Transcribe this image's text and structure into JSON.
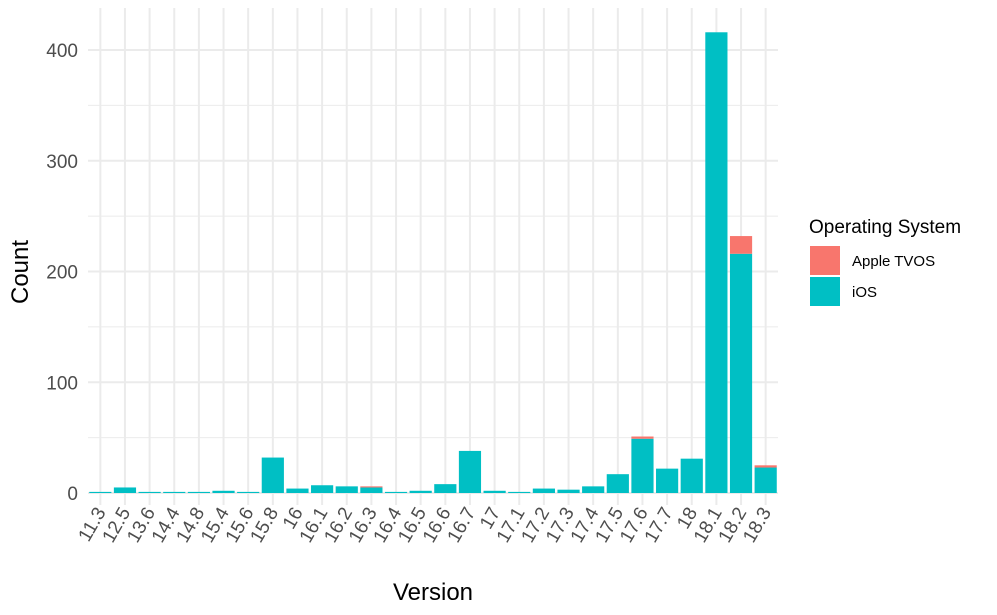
{
  "chart_data": {
    "type": "bar",
    "stacked": true,
    "xlabel": "Version",
    "ylabel": "Count",
    "ylim": [
      0,
      425
    ],
    "yticks": [
      0,
      100,
      200,
      300,
      400
    ],
    "grid": true,
    "legend": {
      "title": "Operating System",
      "position": "right"
    },
    "categories": [
      "11.3",
      "12.5",
      "13.6",
      "14.4",
      "14.8",
      "15.4",
      "15.6",
      "15.8",
      "16",
      "16.1",
      "16.2",
      "16.3",
      "16.4",
      "16.5",
      "16.6",
      "16.7",
      "17",
      "17.1",
      "17.2",
      "17.3",
      "17.4",
      "17.5",
      "17.6",
      "17.7",
      "18",
      "18.1",
      "18.2",
      "18.3"
    ],
    "series": [
      {
        "name": "iOS",
        "color": "#00BFC4",
        "values": [
          1,
          5,
          1,
          1,
          1,
          2,
          1,
          32,
          4,
          7,
          6,
          5,
          1,
          2,
          8,
          38,
          2,
          1,
          4,
          3,
          6,
          17,
          49,
          22,
          31,
          416,
          216,
          23
        ]
      },
      {
        "name": "Apple TVOS",
        "color": "#F8766D",
        "values": [
          0,
          0,
          0,
          0,
          0,
          0,
          0,
          0,
          0,
          0,
          0,
          1,
          0,
          0,
          0,
          0,
          0,
          0,
          0,
          0,
          0,
          0,
          2,
          0,
          0,
          0,
          16,
          2
        ]
      }
    ],
    "legend_order": [
      "Apple TVOS",
      "iOS"
    ]
  }
}
